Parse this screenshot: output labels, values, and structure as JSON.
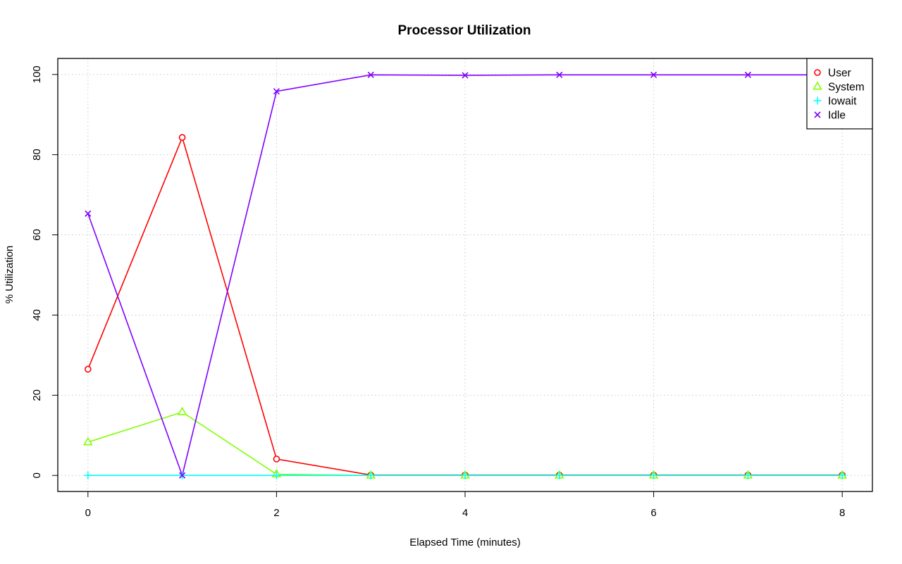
{
  "chart_data": {
    "type": "line",
    "title": "Processor Utilization",
    "xlabel": "Elapsed Time (minutes)",
    "ylabel": "% Utilization",
    "xlim": [
      -0.32,
      8.32
    ],
    "ylim": [
      -4,
      104
    ],
    "xticks": [
      0,
      2,
      4,
      6,
      8
    ],
    "yticks": [
      0,
      20,
      40,
      60,
      80,
      100
    ],
    "grid": true,
    "legend_position": "top-right",
    "x": [
      0,
      1,
      2,
      3,
      4,
      5,
      6,
      7,
      8
    ],
    "series": [
      {
        "name": "User",
        "color": "#FF0000",
        "marker": "circle",
        "values": [
          26.5,
          84.3,
          4.1,
          0.1,
          0.1,
          0.1,
          0.1,
          0.1,
          0.1
        ]
      },
      {
        "name": "System",
        "color": "#80FF00",
        "marker": "triangle",
        "values": [
          8.3,
          15.8,
          0.3,
          0.0,
          0.0,
          0.0,
          0.0,
          0.0,
          0.0
        ]
      },
      {
        "name": "Iowait",
        "color": "#00FFFF",
        "marker": "plus",
        "values": [
          0.0,
          0.0,
          0.0,
          0.0,
          0.0,
          0.0,
          0.0,
          0.0,
          0.0
        ]
      },
      {
        "name": "Idle",
        "color": "#8000FF",
        "marker": "x",
        "values": [
          65.3,
          0.0,
          95.8,
          99.9,
          99.8,
          99.9,
          99.9,
          99.9,
          99.9
        ]
      }
    ]
  }
}
